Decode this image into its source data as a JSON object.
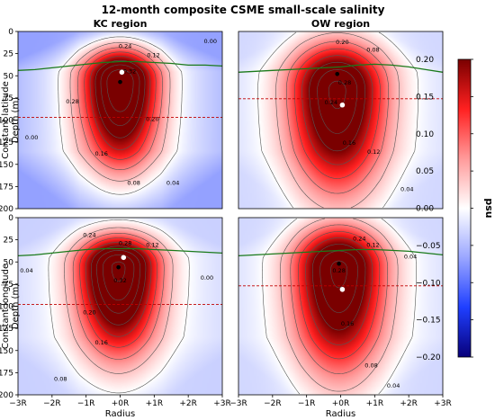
{
  "figure": {
    "title": "12-month composite CSME small-scale salinity",
    "row_labels": [
      "Constant latitude\nDepth (m)",
      "Constant longitude\nDepth (m)"
    ],
    "xlabel": "Radius",
    "colorbar_label": "psu",
    "colormap": [
      "#08007a",
      "#1f3fff",
      "#9aa6ff",
      "#ffffff",
      "#ff9a9a",
      "#ff2020",
      "#7a0000"
    ]
  },
  "chart_data": {
    "type": "heatmap",
    "x_ticks": [
      "−3R",
      "−2R",
      "−1R",
      "+0R",
      "+1R",
      "+2R",
      "+3R"
    ],
    "y_ticks": [
      0,
      25,
      50,
      75,
      100,
      125,
      150,
      175,
      200
    ],
    "xlim": [
      -3,
      3
    ],
    "ylim": [
      200,
      0
    ],
    "colorbar": {
      "vmin": -0.2,
      "vmax": 0.2,
      "ticks": [
        "0.20",
        "0.15",
        "0.10",
        "0.05",
        "0.00",
        "−0.05",
        "−0.10",
        "−0.15",
        "−0.20"
      ],
      "tick_values": [
        0.2,
        0.15,
        0.1,
        0.05,
        0,
        -0.05,
        -0.1,
        -0.15,
        -0.2
      ]
    },
    "contour_levels": [
      0.0,
      0.04,
      0.08,
      0.12,
      0.16,
      0.2,
      0.24,
      0.28,
      0.32
    ],
    "panels": [
      {
        "title": "KC region",
        "row": "constant latitude",
        "center": {
          "x": 0.0,
          "depth": 57
        },
        "core_max": 0.32,
        "spread_x": 0.75,
        "spread_depth_above": 28,
        "spread_depth_below": 65,
        "neg_min": -0.07,
        "contour_labels": [
          {
            "text": "0.24",
            "x": 0.15,
            "depth": 17
          },
          {
            "text": "0.12",
            "x": 0.98,
            "depth": 27
          },
          {
            "text": "0.00",
            "x": 2.65,
            "depth": 11
          },
          {
            "text": "0.32",
            "x": 0.28,
            "depth": 45
          },
          {
            "text": "0.28",
            "x": -1.4,
            "depth": 79
          },
          {
            "text": "0.20",
            "x": 0.95,
            "depth": 99
          },
          {
            "text": "0.00",
            "x": -2.6,
            "depth": 120
          },
          {
            "text": "0.16",
            "x": -0.55,
            "depth": 138
          },
          {
            "text": "0.08",
            "x": 0.4,
            "depth": 171
          },
          {
            "text": "0.04",
            "x": 1.55,
            "depth": 171
          }
        ],
        "mixed_layer_depth": [
          44,
          43,
          41,
          39,
          37,
          35,
          34,
          34,
          35,
          36,
          38,
          38,
          39
        ],
        "ref_depth": 97,
        "marker_black": {
          "x": 0.0,
          "depth": 57
        },
        "marker_white": {
          "x": 0.05,
          "depth": 46
        }
      },
      {
        "title": "OW region",
        "row": "constant latitude",
        "center": {
          "x": -0.1,
          "depth": 66
        },
        "core_max": 0.29,
        "spread_x": 0.95,
        "spread_depth_above": 38,
        "spread_depth_below": 80,
        "neg_min": -0.03,
        "contour_labels": [
          {
            "text": "0.20",
            "x": 0.05,
            "depth": 12
          },
          {
            "text": "0.08",
            "x": 0.95,
            "depth": 21
          },
          {
            "text": "0.28",
            "x": 0.12,
            "depth": 58
          },
          {
            "text": "0.24",
            "x": -0.28,
            "depth": 80
          },
          {
            "text": "0.16",
            "x": 0.25,
            "depth": 126
          },
          {
            "text": "0.12",
            "x": 0.97,
            "depth": 136
          },
          {
            "text": "0.04",
            "x": 1.95,
            "depth": 178
          }
        ],
        "mixed_layer_depth": [
          46,
          45,
          44,
          43,
          42,
          41,
          40,
          38,
          37,
          38,
          40,
          43,
          46
        ],
        "ref_depth": 76,
        "marker_black": {
          "x": -0.1,
          "depth": 48
        },
        "marker_white": {
          "x": 0.05,
          "depth": 83
        }
      },
      {
        "title": "",
        "row": "constant longitude",
        "center": {
          "x": -0.05,
          "depth": 56
        },
        "core_max": 0.33,
        "spread_x": 0.8,
        "spread_depth_above": 25,
        "spread_depth_below": 65,
        "neg_min": -0.035,
        "contour_labels": [
          {
            "text": "0.24",
            "x": -0.9,
            "depth": 20
          },
          {
            "text": "0.28",
            "x": 0.15,
            "depth": 29
          },
          {
            "text": "0.12",
            "x": 0.95,
            "depth": 31
          },
          {
            "text": "0.04",
            "x": -2.75,
            "depth": 60
          },
          {
            "text": "0.32",
            "x": 0.0,
            "depth": 71
          },
          {
            "text": "0.00",
            "x": 2.55,
            "depth": 68
          },
          {
            "text": "0.20",
            "x": -0.9,
            "depth": 107
          },
          {
            "text": "0.16",
            "x": -0.55,
            "depth": 141
          },
          {
            "text": "0.08",
            "x": -1.75,
            "depth": 182
          }
        ],
        "mixed_layer_depth": [
          43,
          42,
          40,
          38,
          36,
          35,
          35,
          35,
          36,
          37,
          38,
          39,
          40
        ],
        "ref_depth": 98,
        "marker_black": {
          "x": -0.05,
          "depth": 56
        },
        "marker_white": {
          "x": 0.1,
          "depth": 45
        }
      },
      {
        "title": "",
        "row": "constant longitude",
        "center": {
          "x": -0.05,
          "depth": 58
        },
        "core_max": 0.29,
        "spread_x": 0.9,
        "spread_depth_above": 35,
        "spread_depth_below": 80,
        "neg_min": -0.03,
        "contour_labels": [
          {
            "text": "0.24",
            "x": 0.55,
            "depth": 24
          },
          {
            "text": "0.12",
            "x": 0.95,
            "depth": 31
          },
          {
            "text": "0.28",
            "x": -0.05,
            "depth": 60
          },
          {
            "text": "0.04",
            "x": 2.05,
            "depth": 44
          },
          {
            "text": "0.16",
            "x": 0.2,
            "depth": 120
          },
          {
            "text": "0.08",
            "x": 0.9,
            "depth": 167
          },
          {
            "text": "0.04",
            "x": 1.55,
            "depth": 190
          }
        ],
        "mixed_layer_depth": [
          43,
          42,
          41,
          40,
          39,
          38,
          37,
          36,
          36,
          37,
          38,
          40,
          42
        ],
        "ref_depth": 77,
        "marker_black": {
          "x": -0.05,
          "depth": 52
        },
        "marker_white": {
          "x": 0.05,
          "depth": 81
        }
      }
    ]
  }
}
